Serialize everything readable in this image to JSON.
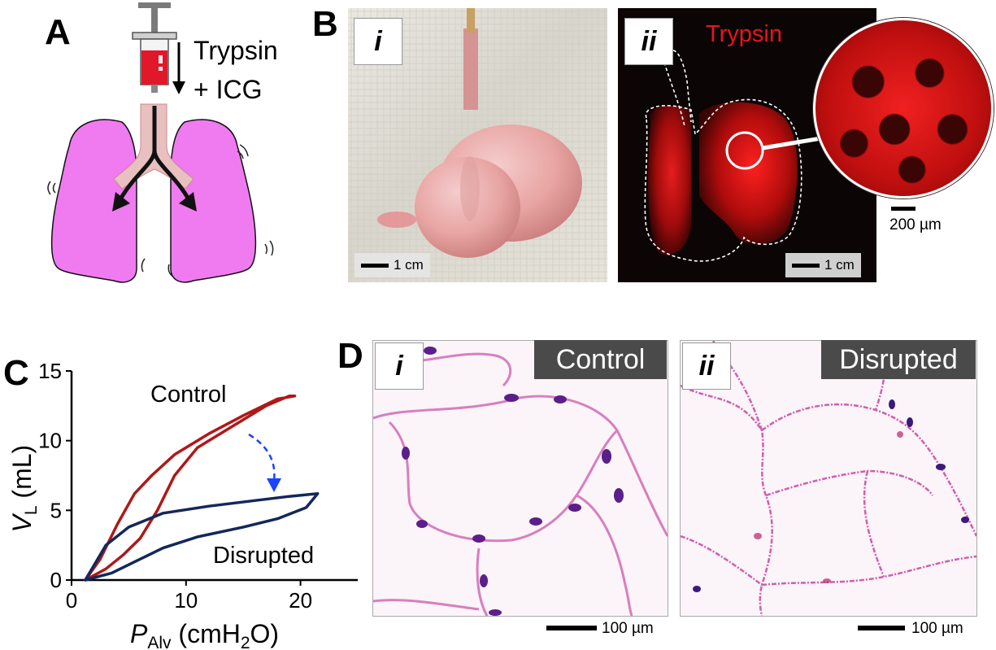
{
  "panel_a": {
    "letter": "A",
    "label_line1": "Trypsin",
    "label_line2": "+ ICG"
  },
  "panel_b": {
    "letter": "B",
    "sub_i": "i",
    "sub_ii": "ii",
    "fluor_title": "Trypsin",
    "scale_i": "1 cm",
    "scale_ii": "1 cm",
    "scale_inset": "200 µm"
  },
  "panel_c": {
    "letter": "C"
  },
  "panel_d": {
    "letter": "D",
    "sub_i": "i",
    "sub_ii": "ii",
    "label_i": "Control",
    "label_ii": "Disrupted",
    "scale_i": "100 µm",
    "scale_ii": "100 µm"
  },
  "chart_data": {
    "type": "line",
    "xlabel_main": "P",
    "xlabel_sub": "Alv",
    "xlabel_units": " (cmH",
    "xlabel_units_sub": "2",
    "xlabel_units_end": "O)",
    "ylabel_main": "V",
    "ylabel_sub": "L",
    "ylabel_units": " (mL)",
    "xlim": [
      0,
      25
    ],
    "ylim": [
      0,
      15
    ],
    "xticks": [
      0,
      10,
      20
    ],
    "yticks": [
      0,
      5,
      10,
      15
    ],
    "grid": false,
    "annotations": [
      "Control",
      "Disrupted"
    ],
    "series": [
      {
        "annotation": "Control",
        "color": "#b01818",
        "x": [
          1.2,
          2.5,
          4.0,
          5.5,
          7.0,
          9.0,
          12.0,
          15.0,
          18.0,
          19.5,
          19.0,
          17.0,
          14.0,
          11.0,
          9.0,
          7.5,
          6.0,
          4.5,
          3.0,
          1.2
        ],
        "y": [
          0.0,
          1.5,
          4.0,
          6.2,
          7.5,
          9.0,
          10.5,
          11.8,
          13.0,
          13.2,
          13.2,
          12.5,
          11.0,
          9.5,
          7.5,
          5.0,
          3.0,
          1.8,
          0.8,
          0.0
        ]
      },
      {
        "annotation": "Disrupted",
        "color": "#13285a",
        "x": [
          1.2,
          3.0,
          5.0,
          8.0,
          12.0,
          16.0,
          19.0,
          21.5,
          20.5,
          18.0,
          15.0,
          11.0,
          8.0,
          5.5,
          3.5,
          1.2
        ],
        "y": [
          0.0,
          2.5,
          3.8,
          4.8,
          5.3,
          5.7,
          6.0,
          6.2,
          5.2,
          4.4,
          3.8,
          3.1,
          2.3,
          1.3,
          0.5,
          0.0
        ]
      }
    ]
  }
}
